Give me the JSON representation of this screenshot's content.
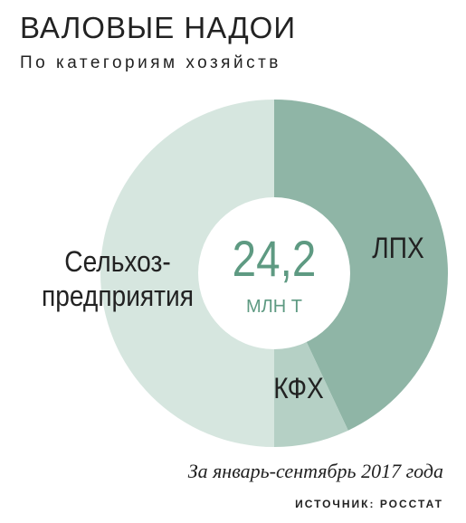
{
  "chart_data": {
    "type": "donut",
    "title": "ВАЛОВЫЕ НАДОИ",
    "subtitle": "По категориям хозяйств",
    "categories": [
      "ЛПХ",
      "КФХ",
      "Сельхоз-предприятия"
    ],
    "values": [
      43,
      7,
      50
    ],
    "colors": [
      "#8fb5a6",
      "#b5d0c5",
      "#d6e6df"
    ],
    "total": {
      "value": 24.2,
      "label": "24,2"
    },
    "unit": "МЛН Т",
    "period": "За январь-сентябрь 2017 года",
    "source": "ИСТОЧНИК: РОССТАТ"
  }
}
